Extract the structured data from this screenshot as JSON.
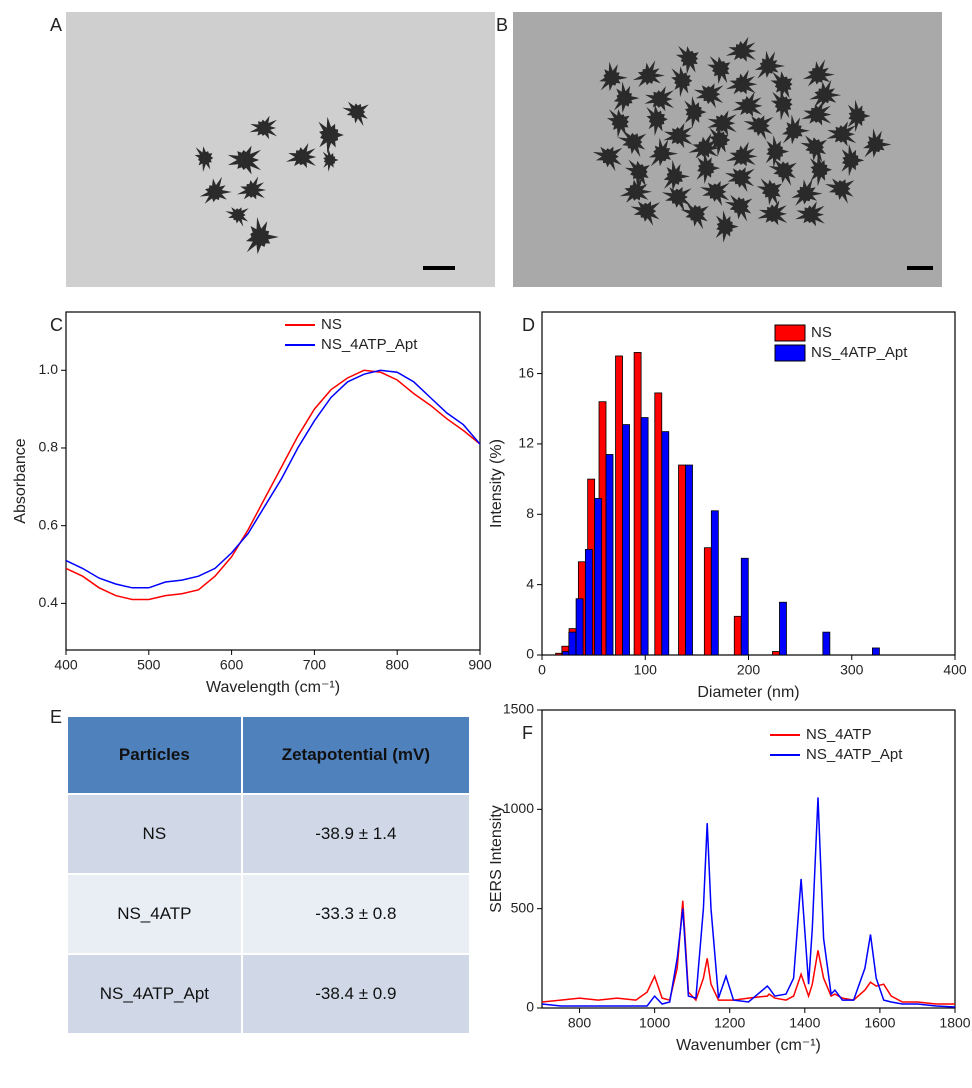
{
  "panel_labels": [
    "A",
    "B",
    "C",
    "D",
    "E",
    "F"
  ],
  "chart_data": [
    {
      "type": "line",
      "xlabel": "Wavelength (cm⁻¹)",
      "ylabel": "Absorbance",
      "x": [
        400,
        420,
        440,
        460,
        480,
        500,
        520,
        540,
        560,
        580,
        600,
        620,
        640,
        660,
        680,
        700,
        720,
        740,
        760,
        780,
        800,
        820,
        840,
        860,
        880,
        900
      ],
      "series": [
        {
          "name": "NS",
          "color": "#ff0000",
          "values": [
            0.49,
            0.47,
            0.44,
            0.42,
            0.41,
            0.41,
            0.42,
            0.425,
            0.435,
            0.47,
            0.52,
            0.59,
            0.67,
            0.75,
            0.83,
            0.9,
            0.95,
            0.98,
            1.0,
            0.995,
            0.975,
            0.94,
            0.91,
            0.875,
            0.845,
            0.81
          ]
        },
        {
          "name": "NS_4ATP_Apt",
          "color": "#0000ff",
          "values": [
            0.51,
            0.49,
            0.465,
            0.45,
            0.44,
            0.44,
            0.455,
            0.46,
            0.47,
            0.49,
            0.53,
            0.58,
            0.65,
            0.72,
            0.8,
            0.87,
            0.93,
            0.97,
            0.99,
            1.0,
            0.995,
            0.97,
            0.93,
            0.89,
            0.86,
            0.81
          ]
        }
      ],
      "xlim": [
        400,
        900
      ],
      "xticks": [
        400,
        500,
        600,
        700,
        800,
        900
      ],
      "ylim": [
        0.28,
        1.15
      ],
      "yticks": [
        0.4,
        0.6,
        0.8,
        {
          "value": 1,
          "label": "1.0"
        }
      ],
      "legend": "upper right"
    },
    {
      "type": "bar",
      "xlabel": "Diameter (nm)",
      "ylabel": "Intensity (%)",
      "x": [
        20,
        26,
        33,
        42,
        51,
        62,
        78,
        96,
        116,
        139,
        164,
        193,
        230,
        272,
        320
      ],
      "series": [
        {
          "name": "NS",
          "color": "#ff0000",
          "values": [
            0.1,
            0.5,
            1.5,
            5.3,
            10.0,
            14.4,
            17.0,
            17.2,
            14.9,
            10.8,
            6.1,
            2.2,
            0.2,
            null,
            null
          ]
        },
        {
          "name": "NS_4ATP_Apt",
          "color": "#0000ff",
          "values": [
            0.2,
            1.3,
            3.2,
            6.0,
            8.9,
            11.4,
            13.1,
            13.5,
            12.7,
            10.8,
            8.2,
            5.5,
            3.0,
            1.3,
            0.4
          ]
        }
      ],
      "xlim": [
        0,
        400
      ],
      "xticks": [
        0,
        100,
        200,
        300,
        400
      ],
      "ylim": [
        0,
        19.5
      ],
      "yticks": [
        0,
        4,
        8,
        12,
        16
      ],
      "legend": "upper right"
    },
    {
      "type": "line",
      "xlabel": "Wavenumber (cm⁻¹)",
      "ylabel": "SERS Intensity",
      "x": [
        700,
        750,
        800,
        850,
        900,
        950,
        980,
        1000,
        1020,
        1040,
        1060,
        1075,
        1090,
        1110,
        1130,
        1140,
        1150,
        1170,
        1190,
        1210,
        1250,
        1300,
        1305,
        1320,
        1350,
        1370,
        1390,
        1410,
        1420,
        1435,
        1450,
        1470,
        1480,
        1500,
        1530,
        1560,
        1575,
        1590,
        1610,
        1630,
        1660,
        1700,
        1750,
        1800
      ],
      "series": [
        {
          "name": "NS_4ATP",
          "color": "#ff0000",
          "values": [
            30,
            40,
            50,
            40,
            50,
            40,
            80,
            160,
            50,
            40,
            200,
            540,
            80,
            40,
            150,
            250,
            120,
            40,
            40,
            40,
            50,
            60,
            70,
            50,
            40,
            60,
            170,
            60,
            120,
            290,
            150,
            60,
            70,
            50,
            40,
            90,
            130,
            110,
            120,
            60,
            30,
            30,
            20,
            20
          ]
        },
        {
          "name": "NS_4ATP_Apt",
          "color": "#0000ff",
          "values": [
            20,
            10,
            10,
            10,
            10,
            10,
            10,
            60,
            20,
            30,
            250,
            500,
            60,
            50,
            500,
            930,
            500,
            50,
            160,
            40,
            30,
            110,
            100,
            60,
            70,
            150,
            650,
            120,
            400,
            1060,
            350,
            70,
            90,
            40,
            40,
            200,
            370,
            150,
            40,
            30,
            20,
            20,
            10,
            5
          ]
        }
      ],
      "xlim": [
        700,
        1800
      ],
      "xticks": [
        800,
        1000,
        1200,
        1400,
        1600,
        1800
      ],
      "ylim": [
        0,
        1500
      ],
      "yticks": [
        0,
        500,
        1000,
        1500
      ],
      "legend": "upper right"
    }
  ],
  "table": {
    "header": [
      "Particles",
      "Zetapotential (mV)"
    ],
    "rows": [
      [
        "NS",
        "-38.9 ± 1.4"
      ],
      [
        "NS_4ATP",
        "-33.3 ± 0.8"
      ],
      [
        "NS_4ATP_Apt",
        "-38.4 ± 0.9"
      ]
    ]
  }
}
